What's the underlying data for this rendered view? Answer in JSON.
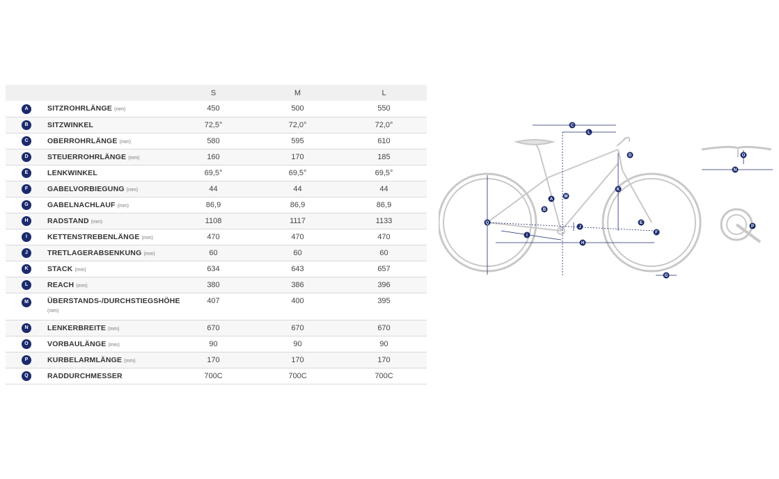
{
  "table": {
    "headers": [
      "S",
      "M",
      "L"
    ],
    "rows": [
      {
        "letter": "A",
        "name": "SITZROHRLÄNGE",
        "unit": "(mm)",
        "S": "450",
        "M": "500",
        "L": "550"
      },
      {
        "letter": "B",
        "name": "SITZWINKEL",
        "unit": "",
        "S": "72,5°",
        "M": "72,0°",
        "L": "72,0°"
      },
      {
        "letter": "C",
        "name": "OBERROHRLÄNGE",
        "unit": "(mm)",
        "S": "580",
        "M": "595",
        "L": "610"
      },
      {
        "letter": "D",
        "name": "STEUERROHRLÄNGE",
        "unit": "(mm)",
        "S": "160",
        "M": "170",
        "L": "185"
      },
      {
        "letter": "E",
        "name": "LENKWINKEL",
        "unit": "",
        "S": "69,5°",
        "M": "69,5°",
        "L": "69,5°"
      },
      {
        "letter": "F",
        "name": "GABELVORBIEGUNG",
        "unit": "(mm)",
        "S": "44",
        "M": "44",
        "L": "44"
      },
      {
        "letter": "G",
        "name": "GABELNACHLAUF",
        "unit": "(mm)",
        "S": "86,9",
        "M": "86,9",
        "L": "86,9"
      },
      {
        "letter": "H",
        "name": "RADSTAND",
        "unit": "(mm)",
        "S": "1108",
        "M": "1117",
        "L": "1133"
      },
      {
        "letter": "I",
        "name": "KETTENSTREBENLÄNGE",
        "unit": "(mm)",
        "S": "470",
        "M": "470",
        "L": "470"
      },
      {
        "letter": "J",
        "name": "TRETLAGERABSENKUNG",
        "unit": "(mm)",
        "S": "60",
        "M": "60",
        "L": "60"
      },
      {
        "letter": "K",
        "name": "STACK",
        "unit": "(mm)",
        "S": "634",
        "M": "643",
        "L": "657"
      },
      {
        "letter": "L",
        "name": "REACH",
        "unit": "(mm)",
        "S": "380",
        "M": "386",
        "L": "396"
      },
      {
        "letter": "M",
        "name": "ÜBERSTANDS-/DURCHSTIEGSHÖHE",
        "unit": "(mm)",
        "S": "407",
        "M": "400",
        "L": "395"
      },
      {
        "letter": "N",
        "name": "LENKERBREITE",
        "unit": "(mm)",
        "S": "670",
        "M": "670",
        "L": "670"
      },
      {
        "letter": "O",
        "name": "VORBAULÄNGE",
        "unit": "(mm)",
        "S": "90",
        "M": "90",
        "L": "90"
      },
      {
        "letter": "P",
        "name": "KURBELARMLÄNGE",
        "unit": "(mm)",
        "S": "170",
        "M": "170",
        "L": "170"
      },
      {
        "letter": "Q",
        "name": "RADDURCHMESSER",
        "unit": "",
        "S": "700C",
        "M": "700C",
        "L": "700C"
      }
    ]
  },
  "diagram": {
    "labels": [
      "A",
      "B",
      "C",
      "D",
      "E",
      "F",
      "G",
      "H",
      "I",
      "J",
      "K",
      "L",
      "M",
      "N",
      "O",
      "P",
      "Q"
    ],
    "colors": {
      "frame": "#c8c8c8",
      "dimension": "#1a2a6c",
      "badge": "#1a2a6c"
    }
  }
}
